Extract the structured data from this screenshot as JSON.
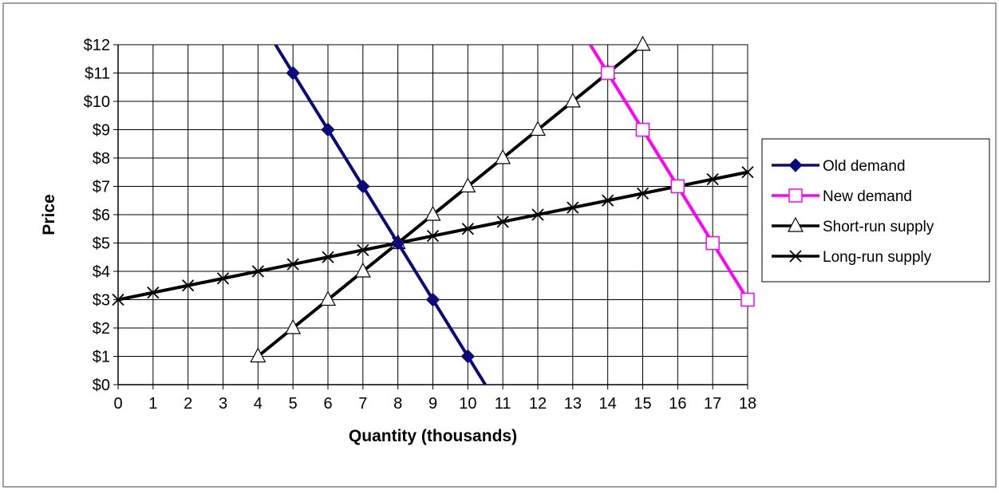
{
  "chart_data": {
    "type": "line",
    "xlabel": "Quantity (thousands)",
    "ylabel": "Price",
    "xlim": [
      0,
      18
    ],
    "ylim": [
      0,
      12
    ],
    "x_ticks": [
      "0",
      "1",
      "2",
      "3",
      "4",
      "5",
      "6",
      "7",
      "8",
      "9",
      "10",
      "11",
      "12",
      "13",
      "14",
      "15",
      "16",
      "17",
      "18"
    ],
    "y_ticks": [
      "$0",
      "$1",
      "$2",
      "$3",
      "$4",
      "$5",
      "$6",
      "$7",
      "$8",
      "$9",
      "$10",
      "$11",
      "$12"
    ],
    "grid": true,
    "legend_position": "right",
    "series": [
      {
        "name": "Old demand",
        "color": "#0a0a7a",
        "marker": "diamond",
        "line": [
          [
            4.5,
            12
          ],
          [
            10.5,
            0
          ]
        ],
        "points": [
          [
            5,
            11
          ],
          [
            6,
            9
          ],
          [
            7,
            7
          ],
          [
            8,
            5
          ],
          [
            9,
            3
          ],
          [
            10,
            1
          ]
        ]
      },
      {
        "name": "New demand",
        "color": "#ff00ff",
        "marker": "square-open",
        "line": [
          [
            13.5,
            12
          ],
          [
            18,
            3
          ]
        ],
        "points": [
          [
            14,
            11
          ],
          [
            15,
            9
          ],
          [
            16,
            7
          ],
          [
            17,
            5
          ],
          [
            18,
            3
          ]
        ]
      },
      {
        "name": "Short-run supply",
        "color": "#000000",
        "marker": "triangle-open",
        "line": [
          [
            4,
            1
          ],
          [
            15,
            12
          ]
        ],
        "points": [
          [
            4,
            1
          ],
          [
            5,
            2
          ],
          [
            6,
            3
          ],
          [
            7,
            4
          ],
          [
            8,
            5
          ],
          [
            9,
            6
          ],
          [
            10,
            7
          ],
          [
            11,
            8
          ],
          [
            12,
            9
          ],
          [
            13,
            10
          ],
          [
            14,
            11
          ],
          [
            15,
            12
          ]
        ]
      },
      {
        "name": "Long-run supply",
        "color": "#000000",
        "marker": "x",
        "line": [
          [
            0,
            3
          ],
          [
            18,
            7.5
          ]
        ],
        "points": [
          [
            0,
            3
          ],
          [
            1,
            3.25
          ],
          [
            2,
            3.5
          ],
          [
            3,
            3.75
          ],
          [
            4,
            4
          ],
          [
            5,
            4.25
          ],
          [
            6,
            4.5
          ],
          [
            7,
            4.75
          ],
          [
            8,
            5
          ],
          [
            9,
            5.25
          ],
          [
            10,
            5.5
          ],
          [
            11,
            5.75
          ],
          [
            12,
            6
          ],
          [
            13,
            6.25
          ],
          [
            14,
            6.5
          ],
          [
            15,
            6.75
          ],
          [
            16,
            7
          ],
          [
            17,
            7.25
          ],
          [
            18,
            7.5
          ]
        ]
      }
    ]
  }
}
